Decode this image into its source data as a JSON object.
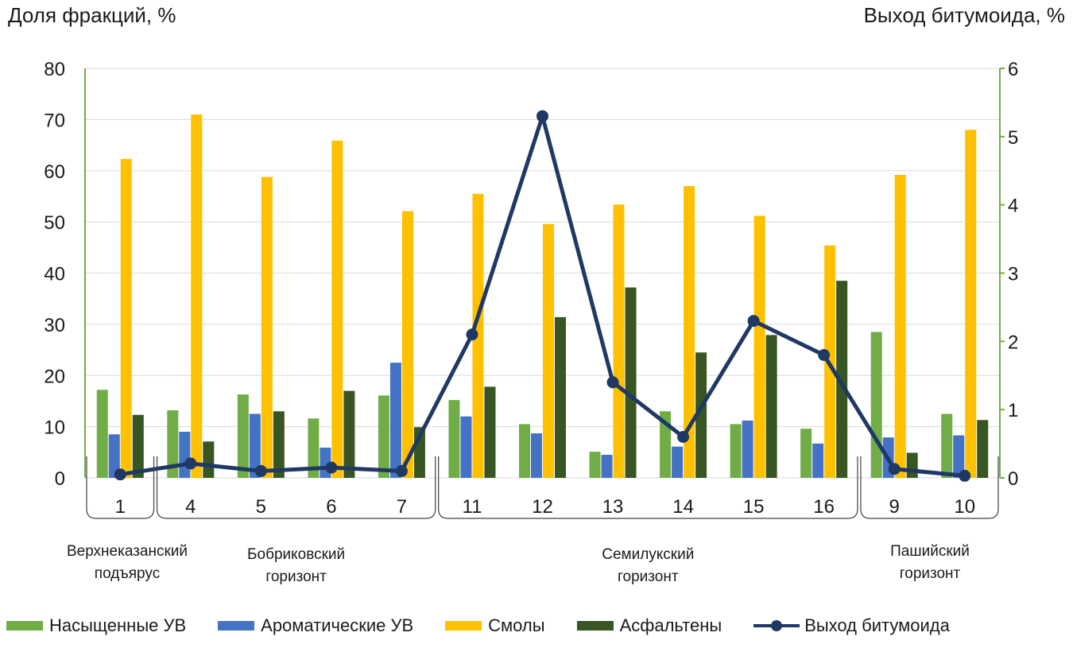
{
  "chart_data": {
    "type": "bar",
    "y_left_label": "Доля фракций, %",
    "y_right_label": "Выход битумоида, %",
    "ylim_left": [
      0,
      80
    ],
    "yticks_left": [
      0,
      10,
      20,
      30,
      40,
      50,
      60,
      70,
      80
    ],
    "ylim_right": [
      0,
      6
    ],
    "yticks_right": [
      0,
      1,
      2,
      3,
      4,
      5,
      6
    ],
    "grid": true,
    "legend_position": "bottom",
    "categories": [
      "1",
      "4",
      "5",
      "6",
      "7",
      "11",
      "12",
      "13",
      "14",
      "15",
      "16",
      "9",
      "10"
    ],
    "groups": [
      {
        "lines": [
          "Верхнеказанский",
          "подъярус"
        ],
        "start": 0,
        "end": 0
      },
      {
        "lines": [
          "Бобриковский",
          "горизонт"
        ],
        "start": 1,
        "end": 4
      },
      {
        "lines": [
          "Семилукский",
          "горизонт"
        ],
        "start": 5,
        "end": 10
      },
      {
        "lines": [
          "Пашийский",
          "горизонт"
        ],
        "start": 11,
        "end": 12
      }
    ],
    "series": [
      {
        "name": "Насыщенные УВ",
        "type": "bar",
        "axis": "left",
        "color": "#70ad47",
        "values": [
          17.2,
          13.2,
          16.3,
          11.6,
          16.1,
          15.2,
          10.5,
          5.1,
          13.0,
          10.5,
          9.6,
          28.5,
          12.5
        ]
      },
      {
        "name": "Ароматические УВ",
        "type": "bar",
        "axis": "left",
        "color": "#4472c4",
        "values": [
          8.5,
          9.0,
          12.5,
          5.9,
          22.5,
          12.0,
          8.7,
          4.5,
          6.1,
          11.2,
          6.7,
          7.9,
          8.3
        ]
      },
      {
        "name": "Смолы",
        "type": "bar",
        "axis": "left",
        "color": "#ffc000",
        "values": [
          62.3,
          71.0,
          58.8,
          65.9,
          52.1,
          55.5,
          49.6,
          53.4,
          57.0,
          51.2,
          45.4,
          59.2,
          68.0
        ]
      },
      {
        "name": "Асфальтены",
        "type": "bar",
        "axis": "left",
        "color": "#375623",
        "values": [
          12.3,
          7.1,
          13.0,
          17.0,
          9.9,
          17.8,
          31.4,
          37.2,
          24.5,
          27.9,
          38.5,
          4.9,
          11.3
        ]
      },
      {
        "name": "Выход битумоида",
        "type": "line",
        "axis": "right",
        "color": "#1f3864",
        "values": [
          0.05,
          0.21,
          0.1,
          0.15,
          0.1,
          2.1,
          5.3,
          1.4,
          0.6,
          2.3,
          1.8,
          0.13,
          0.03
        ]
      }
    ]
  }
}
